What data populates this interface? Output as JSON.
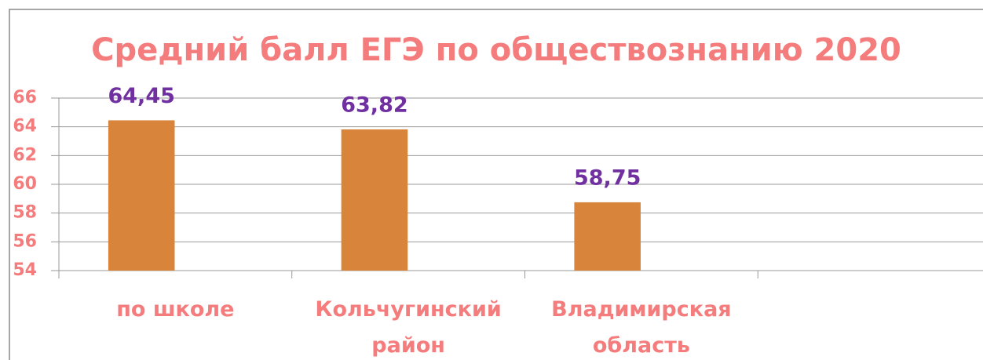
{
  "chart_data": {
    "type": "bar",
    "title": "Средний балл ЕГЭ по обществознанию 2020",
    "categories": [
      "по школе",
      "Кольчугинский район",
      "Владимирская область",
      null
    ],
    "values": [
      64.45,
      63.82,
      58.75,
      null
    ],
    "value_labels": [
      "64,45",
      "63,82",
      "58,75",
      null
    ],
    "color": "#d9843b",
    "ylim": [
      54,
      66
    ],
    "yticks": [
      54,
      56,
      58,
      60,
      62,
      64,
      66
    ],
    "grid": true
  }
}
